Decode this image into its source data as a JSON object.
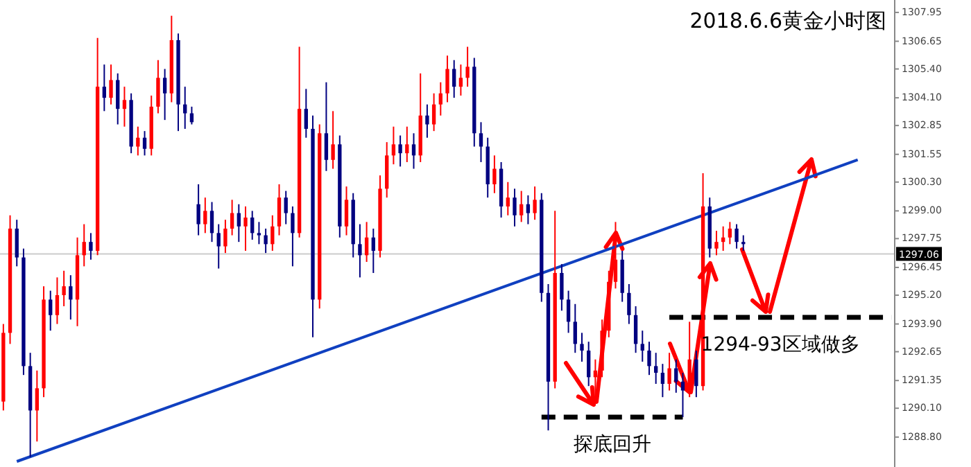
{
  "chart_data": {
    "type": "candlestick",
    "title": "2018.6.6黄金小时图",
    "tick_labels": "y",
    "categories": [
      null,
      null,
      null,
      null,
      null,
      null,
      null,
      null,
      null,
      null,
      null,
      null,
      null,
      null,
      null,
      null,
      null,
      null,
      null,
      null,
      null,
      null,
      null,
      null,
      null,
      null,
      null,
      null,
      null,
      null,
      null,
      null,
      null,
      null,
      null,
      null,
      null,
      null,
      null,
      null,
      null,
      null,
      null,
      null,
      null,
      null,
      null,
      null,
      null,
      null,
      null,
      null,
      null,
      null,
      null,
      null,
      null,
      null,
      null,
      null,
      null,
      null,
      null,
      null,
      null,
      null,
      null,
      null,
      null,
      null,
      null,
      null,
      null,
      null,
      null,
      null,
      null,
      null,
      null,
      null,
      null,
      null,
      null,
      null,
      null,
      null,
      null,
      null,
      null,
      null,
      null,
      null,
      null,
      null,
      null,
      null,
      null,
      null,
      null,
      null,
      null,
      null,
      null,
      null,
      null,
      null,
      null,
      null,
      null,
      null,
      null,
      null,
      null,
      null,
      null,
      null,
      null,
      null,
      null,
      null,
      null,
      null,
      null,
      null,
      null,
      null,
      null,
      null,
      null,
      null,
      null,
      null,
      null
    ],
    "ohlc": [
      [
        1290.4,
        1293.9,
        1290.0,
        1293.5
      ],
      [
        1293.5,
        1298.8,
        1293.0,
        1298.2
      ],
      [
        1298.2,
        1298.6,
        1296.5,
        1296.9
      ],
      [
        1296.9,
        1297.3,
        1291.6,
        1292.0
      ],
      [
        1292.0,
        1292.6,
        1287.9,
        1290.0
      ],
      [
        1290.0,
        1291.8,
        1288.6,
        1291.0
      ],
      [
        1291.0,
        1295.6,
        1290.6,
        1295.0
      ],
      [
        1295.0,
        1295.4,
        1293.6,
        1294.3
      ],
      [
        1294.3,
        1296.0,
        1293.9,
        1295.2
      ],
      [
        1295.2,
        1296.3,
        1294.7,
        1295.6
      ],
      [
        1295.6,
        1296.1,
        1294.1,
        1295.0
      ],
      [
        1295.0,
        1297.8,
        1293.8,
        1297.0
      ],
      [
        1297.0,
        1298.4,
        1296.5,
        1297.6
      ],
      [
        1297.6,
        1298.0,
        1296.8,
        1297.2
      ],
      [
        1297.2,
        1306.8,
        1297.0,
        1304.6
      ],
      [
        1304.6,
        1305.6,
        1303.5,
        1304.1
      ],
      [
        1304.1,
        1305.6,
        1303.8,
        1304.9
      ],
      [
        1304.9,
        1305.2,
        1302.9,
        1303.6
      ],
      [
        1303.6,
        1304.6,
        1302.8,
        1304.0
      ],
      [
        1304.0,
        1304.3,
        1301.6,
        1301.9
      ],
      [
        1301.9,
        1302.8,
        1301.5,
        1302.3
      ],
      [
        1302.3,
        1302.6,
        1301.5,
        1301.8
      ],
      [
        1301.8,
        1304.2,
        1301.5,
        1303.7
      ],
      [
        1303.7,
        1305.8,
        1303.4,
        1305.0
      ],
      [
        1305.0,
        1305.4,
        1303.1,
        1304.3
      ],
      [
        1304.3,
        1307.8,
        1303.9,
        1306.7
      ],
      [
        1306.7,
        1307.0,
        1302.6,
        1303.8
      ],
      [
        1303.8,
        1304.6,
        1302.7,
        1303.4
      ],
      [
        1303.4,
        1303.7,
        1302.9,
        1303.0
      ],
      [
        1299.3,
        1300.2,
        1297.9,
        1298.4
      ],
      [
        1298.4,
        1299.6,
        1298.0,
        1299.0
      ],
      [
        1299.0,
        1299.4,
        1297.6,
        1298.0
      ],
      [
        1298.0,
        1298.4,
        1296.4,
        1297.4
      ],
      [
        1297.4,
        1298.6,
        1297.1,
        1298.2
      ],
      [
        1298.2,
        1299.5,
        1297.9,
        1298.9
      ],
      [
        1298.9,
        1299.3,
        1297.6,
        1298.3
      ],
      [
        1298.3,
        1299.2,
        1297.2,
        1298.7
      ],
      [
        1298.7,
        1299.0,
        1297.7,
        1298.0
      ],
      [
        1298.0,
        1298.5,
        1297.5,
        1297.9
      ],
      [
        1297.9,
        1298.2,
        1297.1,
        1297.5
      ],
      [
        1297.5,
        1298.8,
        1297.2,
        1298.3
      ],
      [
        1298.3,
        1300.2,
        1297.9,
        1299.6
      ],
      [
        1299.6,
        1299.9,
        1298.4,
        1298.9
      ],
      [
        1298.9,
        1299.2,
        1296.5,
        1298.0
      ],
      [
        1298.0,
        1306.4,
        1297.8,
        1303.6
      ],
      [
        1303.6,
        1304.5,
        1302.3,
        1302.7
      ],
      [
        1302.7,
        1303.3,
        1293.3,
        1295.0
      ],
      [
        1295.0,
        1302.9,
        1294.6,
        1302.5
      ],
      [
        1302.5,
        1304.8,
        1300.8,
        1301.3
      ],
      [
        1301.3,
        1303.5,
        1300.9,
        1302.0
      ],
      [
        1302.0,
        1302.4,
        1297.8,
        1298.3
      ],
      [
        1298.3,
        1300.1,
        1297.9,
        1299.5
      ],
      [
        1299.5,
        1299.8,
        1296.9,
        1297.5
      ],
      [
        1297.5,
        1298.4,
        1296.0,
        1297.0
      ],
      [
        1297.0,
        1298.5,
        1296.7,
        1297.8
      ],
      [
        1297.8,
        1298.2,
        1296.2,
        1297.2
      ],
      [
        1297.2,
        1300.6,
        1296.9,
        1300.0
      ],
      [
        1300.0,
        1302.1,
        1299.6,
        1301.5
      ],
      [
        1301.5,
        1302.8,
        1301.1,
        1302.0
      ],
      [
        1302.0,
        1302.4,
        1301.0,
        1301.6
      ],
      [
        1301.6,
        1302.8,
        1301.2,
        1302.0
      ],
      [
        1302.0,
        1302.5,
        1300.9,
        1301.5
      ],
      [
        1301.5,
        1305.2,
        1301.2,
        1303.3
      ],
      [
        1303.3,
        1303.8,
        1302.3,
        1302.9
      ],
      [
        1302.9,
        1304.3,
        1302.6,
        1303.8
      ],
      [
        1303.8,
        1304.8,
        1303.3,
        1304.3
      ],
      [
        1304.3,
        1306.0,
        1303.9,
        1305.4
      ],
      [
        1305.4,
        1305.8,
        1304.1,
        1304.6
      ],
      [
        1304.6,
        1305.6,
        1304.2,
        1305.0
      ],
      [
        1305.0,
        1306.4,
        1304.6,
        1305.5
      ],
      [
        1305.5,
        1305.9,
        1301.9,
        1302.5
      ],
      [
        1302.5,
        1303.0,
        1301.2,
        1301.9
      ],
      [
        1301.9,
        1302.3,
        1299.6,
        1300.2
      ],
      [
        1300.2,
        1301.5,
        1299.8,
        1300.9
      ],
      [
        1300.9,
        1301.2,
        1298.7,
        1299.2
      ],
      [
        1299.2,
        1300.3,
        1298.8,
        1299.6
      ],
      [
        1299.6,
        1300.0,
        1298.3,
        1298.8
      ],
      [
        1298.8,
        1299.9,
        1298.5,
        1299.3
      ],
      [
        1299.3,
        1299.7,
        1298.4,
        1298.9
      ],
      [
        1298.9,
        1300.1,
        1298.6,
        1299.5
      ],
      [
        1299.5,
        1299.8,
        1294.9,
        1295.3
      ],
      [
        1295.3,
        1295.7,
        1289.1,
        1291.3
      ],
      [
        1291.3,
        1299.0,
        1291.0,
        1296.2
      ],
      [
        1296.2,
        1296.6,
        1294.5,
        1295.0
      ],
      [
        1295.0,
        1295.4,
        1293.5,
        1294.0
      ],
      [
        1294.0,
        1294.8,
        1292.6,
        1293.0
      ],
      [
        1293.0,
        1293.5,
        1292.2,
        1292.7
      ],
      [
        1292.7,
        1293.1,
        1291.1,
        1291.5
      ],
      [
        1291.5,
        1292.3,
        1290.6,
        1291.8
      ],
      [
        1291.8,
        1294.1,
        1291.5,
        1293.6
      ],
      [
        1293.6,
        1296.3,
        1293.3,
        1295.8
      ],
      [
        1295.8,
        1298.5,
        1295.5,
        1296.8
      ],
      [
        1296.8,
        1297.2,
        1294.9,
        1295.3
      ],
      [
        1295.3,
        1295.7,
        1293.9,
        1294.3
      ],
      [
        1294.3,
        1294.7,
        1292.6,
        1293.0
      ],
      [
        1293.0,
        1293.6,
        1292.2,
        1292.7
      ],
      [
        1292.7,
        1293.1,
        1291.6,
        1292.0
      ],
      [
        1292.0,
        1292.6,
        1291.2,
        1291.7
      ],
      [
        1291.7,
        1292.1,
        1290.6,
        1291.2
      ],
      [
        1291.2,
        1292.6,
        1290.9,
        1291.9
      ],
      [
        1291.9,
        1292.3,
        1290.8,
        1291.3
      ],
      [
        1291.3,
        1291.7,
        1289.7,
        1290.9
      ],
      [
        1290.9,
        1294.0,
        1290.6,
        1292.3
      ],
      [
        1292.3,
        1292.7,
        1290.6,
        1291.1
      ],
      [
        1291.1,
        1300.7,
        1290.9,
        1299.2
      ],
      [
        1299.2,
        1299.6,
        1296.9,
        1297.3
      ],
      [
        1297.3,
        1298.1,
        1297.0,
        1297.6
      ],
      [
        1297.6,
        1298.3,
        1297.2,
        1297.8
      ],
      [
        1297.8,
        1298.5,
        1297.5,
        1298.2
      ],
      [
        1298.2,
        1298.4,
        1297.3,
        1297.6
      ],
      [
        1297.6,
        1297.9,
        1297.2,
        1297.5
      ],
      null,
      null,
      null,
      null,
      null,
      null,
      null,
      null,
      null,
      null,
      null,
      null,
      null,
      null,
      null,
      null,
      null,
      null,
      null,
      null,
      null,
      null
    ],
    "colors": [
      "#ff0000",
      "#ff0000",
      "#000080",
      "#000080",
      "#000080",
      "#ff0000",
      "#ff0000",
      "#000080",
      "#ff0000",
      "#ff0000",
      "#000080",
      "#ff0000",
      "#ff0000",
      "#000080",
      "#ff0000",
      "#000080",
      "#ff0000",
      "#000080",
      "#ff0000",
      "#000080",
      "#ff0000",
      "#000080",
      "#ff0000",
      "#ff0000",
      "#000080",
      "#ff0000",
      "#000080",
      "#000080",
      "#000080",
      "#000080",
      "#ff0000",
      "#000080",
      "#000080",
      "#ff0000",
      "#ff0000",
      "#000080",
      "#ff0000",
      "#000080",
      "#000080",
      "#000080",
      "#ff0000",
      "#ff0000",
      "#000080",
      "#000080",
      "#ff0000",
      "#000080",
      "#000080",
      "#ff0000",
      "#000080",
      "#ff0000",
      "#000080",
      "#ff0000",
      "#000080",
      "#000080",
      "#ff0000",
      "#000080",
      "#ff0000",
      "#ff0000",
      "#ff0000",
      "#000080",
      "#ff0000",
      "#000080",
      "#ff0000",
      "#000080",
      "#ff0000",
      "#ff0000",
      "#ff0000",
      "#000080",
      "#ff0000",
      "#ff0000",
      "#000080",
      "#000080",
      "#000080",
      "#ff0000",
      "#000080",
      "#ff0000",
      "#000080",
      "#ff0000",
      "#000080",
      "#ff0000",
      "#000080",
      "#000080",
      "#ff0000",
      "#000080",
      "#000080",
      "#000080",
      "#000080",
      "#000080",
      "#ff0000",
      "#ff0000",
      "#ff0000",
      "#ff0000",
      "#000080",
      "#000080",
      "#000080",
      "#000080",
      "#000080",
      "#000080",
      "#000080",
      "#ff0000",
      "#000080",
      "#000080",
      "#ff0000",
      "#000080",
      "#ff0000",
      "#000080",
      "#ff0000",
      "#ff0000",
      "#ff0000",
      "#000080",
      "#000080",
      null,
      null,
      null,
      null,
      null,
      null,
      null,
      null,
      null,
      null,
      null,
      null,
      null,
      null,
      null,
      null,
      null,
      null,
      null,
      null,
      null,
      null
    ],
    "ylim": [
      1287.45,
      1308.51
    ],
    "yticks": [
      {
        "value": 1307.95,
        "label": "1307.95"
      },
      {
        "value": 1306.65,
        "label": "1306.65"
      },
      {
        "value": 1305.4,
        "label": "1305.40"
      },
      {
        "value": 1304.1,
        "label": "1304.10"
      },
      {
        "value": 1302.85,
        "label": "1302.85"
      },
      {
        "value": 1301.55,
        "label": "1301.55"
      },
      {
        "value": 1300.3,
        "label": "1300.30"
      },
      {
        "value": 1299.0,
        "label": "1299.00"
      },
      {
        "value": 1297.75,
        "label": "1297.75"
      },
      {
        "value": 1296.45,
        "label": "1296.45"
      },
      {
        "value": 1295.2,
        "label": "1295.20"
      },
      {
        "value": 1293.9,
        "label": "1293.90"
      },
      {
        "value": 1292.65,
        "label": "1292.65"
      },
      {
        "value": 1291.35,
        "label": "1291.35"
      },
      {
        "value": 1290.1,
        "label": "1290.10"
      },
      {
        "value": 1288.8,
        "label": "1288.80"
      }
    ],
    "ref_lines": [
      {
        "axis": "y",
        "value": 1297.06,
        "label": "1297.06",
        "color": "#cccccc"
      }
    ],
    "series": [
      {
        "type": "line",
        "color": "#1040c0",
        "values": [
          null,
          null,
          1287.7,
          null,
          null,
          null,
          null,
          null,
          null,
          null,
          null,
          null,
          null,
          null,
          null,
          null,
          null,
          null,
          null,
          null,
          null,
          null,
          null,
          null,
          null,
          null,
          null,
          null,
          null,
          null,
          null,
          null,
          null,
          null,
          null,
          null,
          null,
          null,
          null,
          null,
          null,
          null,
          null,
          null,
          null,
          null,
          null,
          null,
          null,
          null,
          null,
          null,
          null,
          null,
          null,
          null,
          null,
          null,
          null,
          null,
          null,
          null,
          null,
          null,
          null,
          null,
          null,
          null,
          null,
          null,
          null,
          null,
          null,
          null,
          null,
          null,
          null,
          null,
          null,
          null,
          null,
          null,
          null,
          null,
          null,
          null,
          null,
          null,
          null,
          null,
          null,
          null,
          null,
          null,
          null,
          null,
          null,
          null,
          null,
          null,
          null,
          null,
          null,
          null,
          null,
          null,
          null,
          null,
          null,
          null,
          null,
          null,
          null,
          null,
          null,
          null,
          null,
          null,
          null,
          null,
          null,
          null,
          null,
          null,
          null,
          null,
          null,
          1301.3,
          null,
          null,
          null,
          null,
          null
        ]
      },
      {
        "type": "line",
        "color": "#000000",
        "line_style": "dashed",
        "values": [
          null,
          null,
          null,
          null,
          null,
          null,
          null,
          null,
          null,
          null,
          null,
          null,
          null,
          null,
          null,
          null,
          null,
          null,
          null,
          null,
          null,
          null,
          null,
          null,
          null,
          null,
          null,
          null,
          null,
          null,
          null,
          null,
          null,
          null,
          null,
          null,
          null,
          null,
          null,
          null,
          null,
          null,
          null,
          null,
          null,
          null,
          null,
          null,
          null,
          null,
          null,
          null,
          null,
          null,
          null,
          null,
          null,
          null,
          null,
          null,
          null,
          null,
          null,
          null,
          null,
          null,
          null,
          null,
          null,
          null,
          null,
          null,
          null,
          null,
          null,
          null,
          null,
          null,
          null,
          null,
          1289.7,
          null,
          null,
          null,
          null,
          null,
          null,
          null,
          null,
          null,
          null,
          null,
          null,
          null,
          null,
          null,
          null,
          null,
          null,
          null,
          null,
          1289.7,
          null,
          null,
          null,
          null,
          null,
          null,
          null,
          null,
          null,
          null,
          null,
          null,
          null,
          null,
          null,
          null,
          null,
          null,
          null,
          null,
          null,
          null,
          null,
          null,
          null,
          null,
          null,
          null,
          null,
          null,
          null
        ]
      },
      {
        "type": "line",
        "color": "#000000",
        "line_style": "dashed",
        "values": [
          null,
          null,
          null,
          null,
          null,
          null,
          null,
          null,
          null,
          null,
          null,
          null,
          null,
          null,
          null,
          null,
          null,
          null,
          null,
          null,
          null,
          null,
          null,
          null,
          null,
          null,
          null,
          null,
          null,
          null,
          null,
          null,
          null,
          null,
          null,
          null,
          null,
          null,
          null,
          null,
          null,
          null,
          null,
          null,
          null,
          null,
          null,
          null,
          null,
          null,
          null,
          null,
          null,
          null,
          null,
          null,
          null,
          null,
          null,
          null,
          null,
          null,
          null,
          null,
          null,
          null,
          null,
          null,
          null,
          null,
          null,
          null,
          null,
          null,
          null,
          null,
          null,
          null,
          null,
          null,
          null,
          null,
          null,
          null,
          null,
          null,
          null,
          null,
          null,
          null,
          null,
          null,
          null,
          null,
          null,
          null,
          null,
          null,
          null,
          1294.2,
          null,
          null,
          null,
          null,
          null,
          null,
          null,
          null,
          null,
          null,
          null,
          null,
          null,
          null,
          null,
          null,
          null,
          null,
          null,
          null,
          null,
          null,
          null,
          null,
          null,
          null,
          null,
          null,
          null,
          null,
          null,
          null,
          1294.2
        ]
      }
    ],
    "annotations": [
      "探底回升",
      "1294-93区域做多"
    ]
  }
}
